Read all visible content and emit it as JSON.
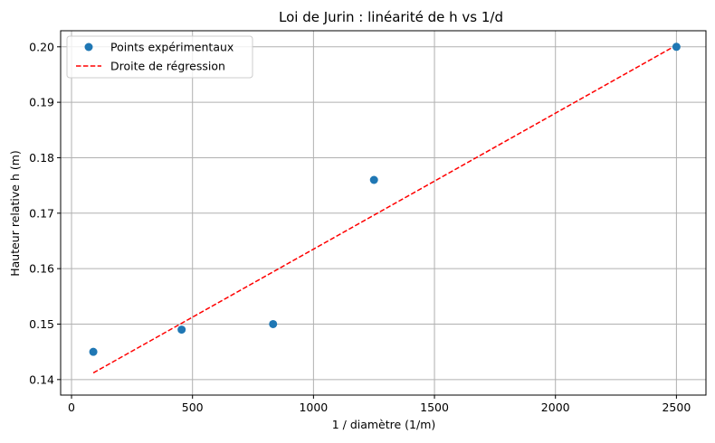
{
  "chart_data": {
    "type": "scatter",
    "title": "Loi de Jurin : linéarité de h vs 1/d",
    "xlabel": "1 / diamètre (1/m)",
    "ylabel": "Hauteur relative h (m)",
    "xlim": [
      -45,
      2622
    ],
    "ylim": [
      0.1372,
      0.2029
    ],
    "x_ticks": [
      0,
      500,
      1000,
      1500,
      2000,
      2500
    ],
    "x_tick_labels": [
      "0",
      "500",
      "1000",
      "1500",
      "2000",
      "2500"
    ],
    "y_ticks": [
      0.14,
      0.15,
      0.16,
      0.17,
      0.18,
      0.19,
      0.2
    ],
    "y_tick_labels": [
      "0.14",
      "0.15",
      "0.16",
      "0.17",
      "0.18",
      "0.19",
      "0.20"
    ],
    "grid": true,
    "legend_position": "upper-left",
    "series": [
      {
        "name": "Points expérimentaux",
        "kind": "scatter",
        "color": "#1f77b4",
        "x": [
          90,
          455,
          833,
          1250,
          2500
        ],
        "y": [
          0.145,
          0.149,
          0.15,
          0.176,
          0.2
        ]
      },
      {
        "name": "Droite de régression",
        "kind": "line",
        "style": "dashed",
        "color": "#ff0000",
        "x": [
          90,
          2500
        ],
        "y": [
          0.1412,
          0.2003
        ]
      }
    ]
  }
}
